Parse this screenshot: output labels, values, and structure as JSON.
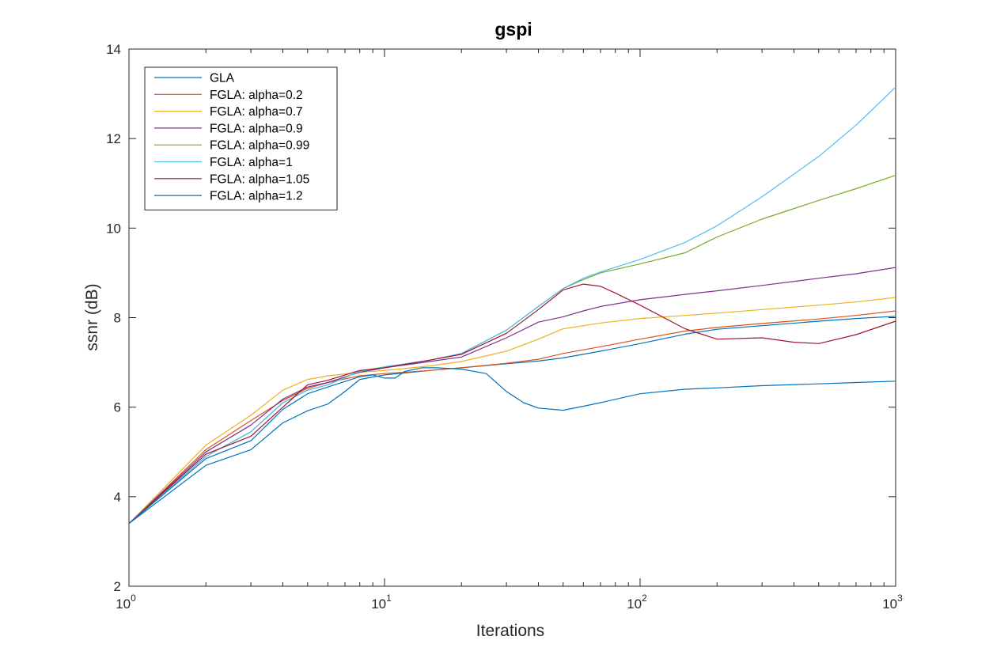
{
  "chart_data": {
    "type": "line",
    "title": "gspi",
    "xlabel": "Iterations",
    "ylabel": "ssnr (dB)",
    "xscale": "log",
    "xlim": [
      1,
      1000
    ],
    "ylim": [
      2,
      14
    ],
    "yticks": [
      "2",
      "4",
      "6",
      "8",
      "10",
      "12",
      "14"
    ],
    "xticks": [
      {
        "value": 1,
        "base": "10",
        "exp": "0"
      },
      {
        "value": 10,
        "base": "10",
        "exp": "1"
      },
      {
        "value": 100,
        "base": "10",
        "exp": "2"
      },
      {
        "value": 1000,
        "base": "10",
        "exp": "3"
      }
    ],
    "grid": false,
    "legend_position": "top-left",
    "series": [
      {
        "name": "GLA",
        "color": "#0072BD",
        "x": [
          1,
          2,
          3,
          4,
          5,
          6,
          7,
          8,
          10,
          15,
          20,
          30,
          40,
          50,
          70,
          100,
          150,
          200,
          300,
          500,
          700,
          1000
        ],
        "y": [
          3.4,
          4.7,
          5.05,
          5.65,
          5.92,
          6.07,
          6.35,
          6.62,
          6.72,
          6.82,
          6.88,
          6.97,
          7.03,
          7.1,
          7.25,
          7.42,
          7.63,
          7.74,
          7.82,
          7.92,
          7.98,
          8.03
        ]
      },
      {
        "name": "FGLA: alpha=0.2",
        "color": "#D95319",
        "x": [
          1,
          2,
          3,
          4,
          5,
          6,
          8,
          10,
          15,
          20,
          30,
          40,
          50,
          70,
          100,
          150,
          200,
          300,
          500,
          700,
          1000
        ],
        "y": [
          3.4,
          5.05,
          5.7,
          6.15,
          6.42,
          6.55,
          6.7,
          6.75,
          6.82,
          6.88,
          6.98,
          7.07,
          7.2,
          7.35,
          7.52,
          7.7,
          7.78,
          7.87,
          7.97,
          8.05,
          8.15
        ]
      },
      {
        "name": "FGLA: alpha=0.7",
        "color": "#EDB120",
        "x": [
          1,
          2,
          3,
          4,
          5,
          6,
          8,
          10,
          15,
          20,
          30,
          40,
          50,
          70,
          100,
          150,
          200,
          300,
          500,
          700,
          1000
        ],
        "y": [
          3.4,
          5.15,
          5.82,
          6.38,
          6.62,
          6.7,
          6.78,
          6.82,
          6.92,
          7.02,
          7.25,
          7.52,
          7.75,
          7.88,
          7.98,
          8.05,
          8.1,
          8.18,
          8.28,
          8.35,
          8.45
        ]
      },
      {
        "name": "FGLA: alpha=0.9",
        "color": "#7E2F8E",
        "x": [
          1,
          2,
          3,
          4,
          5,
          6,
          8,
          10,
          15,
          20,
          30,
          40,
          50,
          60,
          70,
          100,
          150,
          200,
          300,
          500,
          700,
          1000
        ],
        "y": [
          3.4,
          5.0,
          5.6,
          6.18,
          6.45,
          6.55,
          6.78,
          6.88,
          7.02,
          7.12,
          7.55,
          7.9,
          8.02,
          8.15,
          8.25,
          8.4,
          8.52,
          8.6,
          8.72,
          8.88,
          8.98,
          9.12
        ]
      },
      {
        "name": "FGLA: alpha=0.99",
        "color": "#77AC30",
        "x": [
          1,
          2,
          3,
          4,
          5,
          6,
          8,
          10,
          15,
          20,
          30,
          40,
          50,
          60,
          70,
          100,
          150,
          200,
          300,
          500,
          700,
          1000
        ],
        "y": [
          3.4,
          4.9,
          5.45,
          6.1,
          6.38,
          6.5,
          6.8,
          6.9,
          7.05,
          7.2,
          7.72,
          8.25,
          8.65,
          8.85,
          9.0,
          9.2,
          9.45,
          9.8,
          10.2,
          10.62,
          10.88,
          11.18
        ]
      },
      {
        "name": "FGLA: alpha=1",
        "color": "#4DBEEE",
        "x": [
          1,
          2,
          3,
          4,
          5,
          6,
          8,
          10,
          15,
          20,
          30,
          40,
          50,
          60,
          70,
          100,
          150,
          200,
          300,
          500,
          700,
          1000
        ],
        "y": [
          3.4,
          4.9,
          5.45,
          6.1,
          6.38,
          6.5,
          6.8,
          6.9,
          7.05,
          7.2,
          7.72,
          8.25,
          8.65,
          8.88,
          9.02,
          9.3,
          9.68,
          10.05,
          10.7,
          11.6,
          12.3,
          13.15
        ]
      },
      {
        "name": "FGLA: alpha=1.05",
        "color": "#A2142F",
        "x": [
          1,
          2,
          3,
          4,
          5,
          6,
          8,
          10,
          15,
          20,
          30,
          40,
          50,
          60,
          70,
          80,
          100,
          150,
          200,
          300,
          400,
          500,
          700,
          1000
        ],
        "y": [
          3.4,
          4.95,
          5.35,
          6.0,
          6.5,
          6.6,
          6.82,
          6.88,
          7.05,
          7.18,
          7.65,
          8.18,
          8.62,
          8.75,
          8.7,
          8.55,
          8.28,
          7.75,
          7.52,
          7.55,
          7.45,
          7.42,
          7.62,
          7.92
        ]
      },
      {
        "name": "FGLA: alpha=1.2",
        "color": "#0072BD",
        "x": [
          1,
          2,
          3,
          4,
          5,
          6,
          8,
          9,
          10,
          11,
          12,
          14,
          16,
          20,
          25,
          30,
          35,
          40,
          50,
          60,
          70,
          100,
          150,
          200,
          300,
          500,
          700,
          1000
        ],
        "y": [
          3.4,
          4.85,
          5.25,
          5.95,
          6.3,
          6.45,
          6.68,
          6.72,
          6.65,
          6.65,
          6.8,
          6.88,
          6.88,
          6.85,
          6.75,
          6.35,
          6.1,
          5.98,
          5.93,
          6.02,
          6.1,
          6.3,
          6.4,
          6.43,
          6.48,
          6.52,
          6.55,
          6.58
        ]
      }
    ]
  }
}
